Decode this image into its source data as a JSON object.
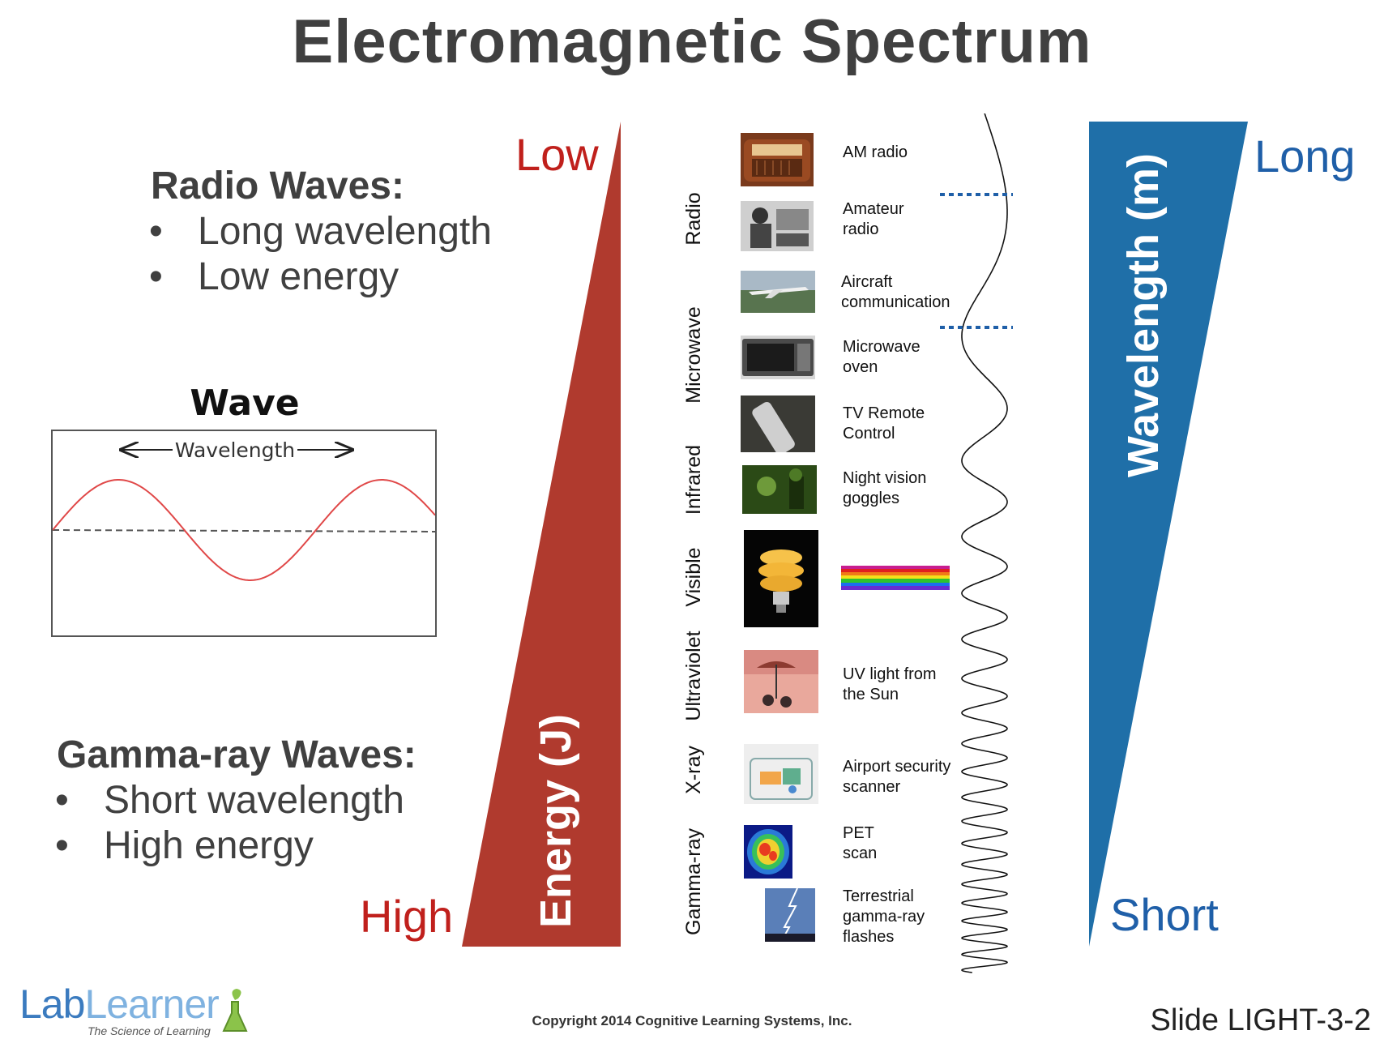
{
  "title": "Electromagnetic Spectrum",
  "radio_section": {
    "heading": "Radio Waves:",
    "bullets": [
      "Long wavelength",
      "Low energy"
    ]
  },
  "gamma_section": {
    "heading": "Gamma-ray Waves:",
    "bullets": [
      "Short wavelength",
      "High energy"
    ]
  },
  "wave_diagram": {
    "title": "Wave",
    "label": "Wavelength"
  },
  "energy_scale": {
    "low": "Low",
    "high": "High",
    "axis_label": "Energy (J)",
    "color": "#b03a2e"
  },
  "wavelength_scale": {
    "long": "Long",
    "short": "Short",
    "axis_label": "Wavelength (m)",
    "color": "#1f6fa8"
  },
  "categories": [
    "Radio",
    "Microwave",
    "Infrared",
    "Visible",
    "Ultraviolet",
    "X-ray",
    "Gamma-ray"
  ],
  "items": [
    {
      "label": "AM radio",
      "icon": "radio-photo"
    },
    {
      "label": "Amateur radio",
      "icon": "ham-operator-photo"
    },
    {
      "label": "Aircraft communication",
      "icon": "airplane-photo"
    },
    {
      "label": "Microwave oven",
      "icon": "microwave-photo"
    },
    {
      "label": "TV Remote Control",
      "icon": "remote-photo"
    },
    {
      "label": "Night vision goggles",
      "icon": "night-vision-photo"
    },
    {
      "label": "",
      "icon": "light-bulb-photo"
    },
    {
      "label": "UV light from the Sun",
      "icon": "beach-photo"
    },
    {
      "label": "Airport security scanner",
      "icon": "xray-bag-photo"
    },
    {
      "label": "PET scan",
      "icon": "pet-scan-photo"
    },
    {
      "label": "Terrestrial gamma-ray flashes",
      "icon": "lightning-photo"
    }
  ],
  "footer": {
    "copyright": "Copyright 2014 Cognitive Learning Systems, Inc.",
    "slide_id": "Slide LIGHT-3-2",
    "logo_lab": "Lab",
    "logo_learner": "Learner",
    "logo_tagline": "The Science of Learning"
  }
}
